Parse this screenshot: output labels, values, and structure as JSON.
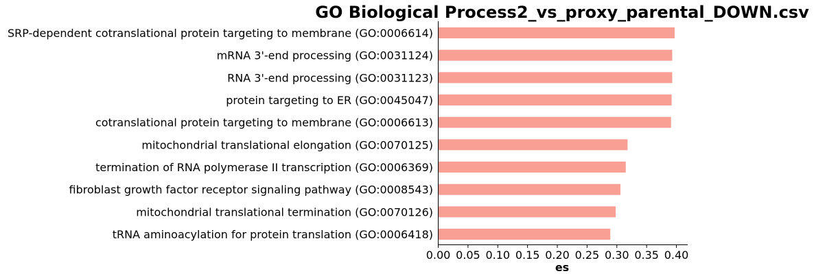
{
  "chart_data": {
    "type": "bar",
    "orientation": "horizontal",
    "title": "GO Biological Process2_vs_proxy_parental_DOWN.csv",
    "xlabel": "es",
    "ylabel": "",
    "xlim": [
      0,
      0.42
    ],
    "xticks": [
      "0.00",
      "0.05",
      "0.10",
      "0.15",
      "0.20",
      "0.25",
      "0.30",
      "0.35",
      "0.40"
    ],
    "grid": false,
    "legend": "none",
    "bar_color": "#fa9f94",
    "categories": [
      "SRP-dependent cotranslational protein targeting to membrane (GO:0006614)",
      "mRNA 3'-end processing (GO:0031124)",
      "RNA 3'-end processing (GO:0031123)",
      "protein targeting to ER (GO:0045047)",
      "cotranslational protein targeting to membrane (GO:0006613)",
      "mitochondrial translational elongation (GO:0070125)",
      "termination of RNA polymerase II transcription (GO:0006369)",
      "fibroblast growth factor receptor signaling pathway (GO:0008543)",
      "mitochondrial translational termination (GO:0070126)",
      "tRNA aminoacylation for protein translation (GO:0006418)"
    ],
    "values": [
      0.397,
      0.393,
      0.393,
      0.392,
      0.391,
      0.318,
      0.315,
      0.306,
      0.298,
      0.289
    ]
  }
}
